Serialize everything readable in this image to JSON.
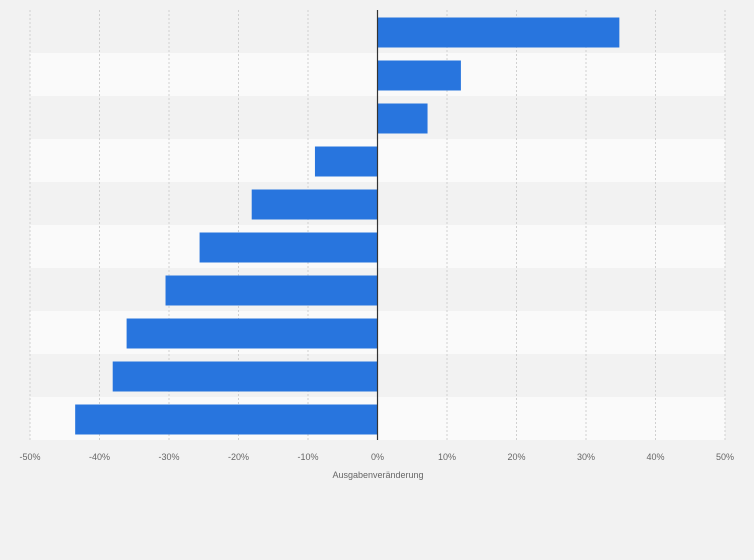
{
  "chart_data": {
    "type": "bar",
    "orientation": "horizontal",
    "xlabel": "Ausgabenveränderung",
    "xlim": [
      -50,
      50
    ],
    "xticks": [
      -50,
      -40,
      -30,
      -20,
      -10,
      0,
      10,
      20,
      30,
      40,
      50
    ],
    "xtick_labels": [
      "-50%",
      "-40%",
      "-30%",
      "-20%",
      "-10%",
      "0%",
      "10%",
      "20%",
      "30%",
      "40%",
      "50%"
    ],
    "category_labels_shown": false,
    "values": [
      34.8,
      12.0,
      7.2,
      -9.0,
      -18.1,
      -25.6,
      -30.5,
      -36.1,
      -38.1,
      -43.5
    ],
    "bar_color": "#2875de",
    "band_colors": [
      "#f2f2f2",
      "#fafafa"
    ],
    "grid": true
  }
}
